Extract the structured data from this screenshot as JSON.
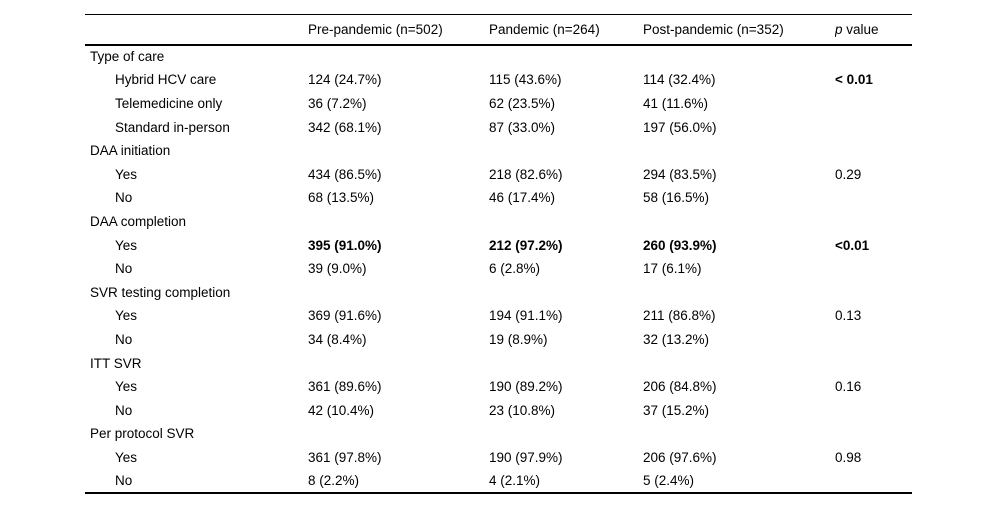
{
  "table": {
    "colors": {
      "text": "#000000",
      "rule": "#000000",
      "background": "#ffffff"
    },
    "headers": {
      "label": "",
      "col1": "Pre-pandemic (n=502)",
      "col2": "Pandemic (n=264)",
      "col3": "Post-pandemic (n=352)",
      "p_italic": "p",
      "p_rest": " value"
    },
    "rows": [
      {
        "label": "Type of care",
        "indent": false,
        "values": [
          "",
          "",
          ""
        ],
        "p": "",
        "bold_values": false,
        "bold_p": false
      },
      {
        "label": "Hybrid HCV care",
        "indent": true,
        "values": [
          "124 (24.7%)",
          "115 (43.6%)",
          "114 (32.4%)"
        ],
        "p": "< 0.01",
        "bold_values": false,
        "bold_p": true
      },
      {
        "label": "Telemedicine only",
        "indent": true,
        "values": [
          "36 (7.2%)",
          "62 (23.5%)",
          "41 (11.6%)"
        ],
        "p": "",
        "bold_values": false,
        "bold_p": false
      },
      {
        "label": "Standard in-person",
        "indent": true,
        "values": [
          "342 (68.1%)",
          "87 (33.0%)",
          "197 (56.0%)"
        ],
        "p": "",
        "bold_values": false,
        "bold_p": false
      },
      {
        "label": "DAA initiation",
        "indent": false,
        "values": [
          "",
          "",
          ""
        ],
        "p": "",
        "bold_values": false,
        "bold_p": false
      },
      {
        "label": "Yes",
        "indent": true,
        "values": [
          "434 (86.5%)",
          "218 (82.6%)",
          "294 (83.5%)"
        ],
        "p": "0.29",
        "bold_values": false,
        "bold_p": false
      },
      {
        "label": "No",
        "indent": true,
        "values": [
          "68 (13.5%)",
          "46 (17.4%)",
          "58 (16.5%)"
        ],
        "p": "",
        "bold_values": false,
        "bold_p": false
      },
      {
        "label": "DAA completion",
        "indent": false,
        "values": [
          "",
          "",
          ""
        ],
        "p": "",
        "bold_values": false,
        "bold_p": false
      },
      {
        "label": "Yes",
        "indent": true,
        "values": [
          "395 (91.0%)",
          "212 (97.2%)",
          "260 (93.9%)"
        ],
        "p": "<0.01",
        "bold_values": true,
        "bold_p": true
      },
      {
        "label": "No",
        "indent": true,
        "values": [
          "39 (9.0%)",
          "6 (2.8%)",
          "17 (6.1%)"
        ],
        "p": "",
        "bold_values": false,
        "bold_p": false
      },
      {
        "label": "SVR testing completion",
        "indent": false,
        "values": [
          "",
          "",
          ""
        ],
        "p": "",
        "bold_values": false,
        "bold_p": false
      },
      {
        "label": "Yes",
        "indent": true,
        "values": [
          "369 (91.6%)",
          "194 (91.1%)",
          "211 (86.8%)"
        ],
        "p": "0.13",
        "bold_values": false,
        "bold_p": false
      },
      {
        "label": "No",
        "indent": true,
        "values": [
          "34 (8.4%)",
          "19 (8.9%)",
          "32 (13.2%)"
        ],
        "p": "",
        "bold_values": false,
        "bold_p": false
      },
      {
        "label": "ITT SVR",
        "indent": false,
        "values": [
          "",
          "",
          ""
        ],
        "p": "",
        "bold_values": false,
        "bold_p": false
      },
      {
        "label": "Yes",
        "indent": true,
        "values": [
          "361 (89.6%)",
          "190 (89.2%)",
          "206 (84.8%)"
        ],
        "p": "0.16",
        "bold_values": false,
        "bold_p": false
      },
      {
        "label": "No",
        "indent": true,
        "values": [
          "42 (10.4%)",
          "23 (10.8%)",
          "37 (15.2%)"
        ],
        "p": "",
        "bold_values": false,
        "bold_p": false
      },
      {
        "label": "Per protocol SVR",
        "indent": false,
        "values": [
          "",
          "",
          ""
        ],
        "p": "",
        "bold_values": false,
        "bold_p": false
      },
      {
        "label": "Yes",
        "indent": true,
        "values": [
          "361 (97.8%)",
          "190 (97.9%)",
          "206 (97.6%)"
        ],
        "p": "0.98",
        "bold_values": false,
        "bold_p": false
      },
      {
        "label": "No",
        "indent": true,
        "values": [
          "8 (2.2%)",
          "4 (2.1%)",
          "5 (2.4%)"
        ],
        "p": "",
        "bold_values": false,
        "bold_p": false
      }
    ]
  }
}
